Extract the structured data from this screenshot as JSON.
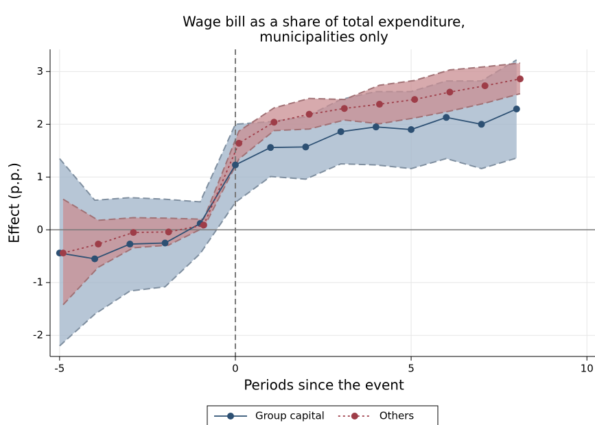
{
  "chart_data": {
    "type": "line",
    "title": [
      "Wage bill as a share of total expenditure,",
      "municipalities only"
    ],
    "xlabel": "Periods since the event",
    "ylabel": "Effect (p.p.)",
    "xlim": [
      -5.27,
      10.23
    ],
    "ylim": [
      -2.4,
      3.42
    ],
    "xticks": [
      -5,
      0,
      5,
      10
    ],
    "yticks": [
      -2,
      -1,
      0,
      1,
      2,
      3
    ],
    "hline": 0,
    "vline": 0,
    "grid": true,
    "legend": "bottom",
    "series": [
      {
        "name": "Group capital",
        "color": "#2d5073",
        "band_color": "#9fb3c8",
        "line_style": "solid",
        "x": [
          -5,
          -4,
          -3,
          -2,
          -1,
          0,
          1,
          2,
          3,
          4,
          5,
          6,
          7,
          8
        ],
        "values": [
          -0.44,
          -0.55,
          -0.27,
          -0.25,
          0.12,
          1.23,
          1.56,
          1.57,
          1.86,
          1.95,
          1.9,
          2.13,
          2.0,
          2.29
        ],
        "lower": [
          -2.2,
          -1.6,
          -1.16,
          -1.08,
          -0.45,
          0.52,
          1.01,
          0.96,
          1.25,
          1.23,
          1.16,
          1.35,
          1.16,
          1.36
        ],
        "upper": [
          1.35,
          0.56,
          0.61,
          0.58,
          0.53,
          2.0,
          2.05,
          2.14,
          2.47,
          2.62,
          2.62,
          2.82,
          2.82,
          3.22
        ]
      },
      {
        "name": "Others",
        "color": "#9e3d48",
        "band_color": "#c98d92",
        "line_style": "dotted",
        "x": [
          -4.9,
          -3.9,
          -2.9,
          -1.9,
          -0.9,
          0.1,
          1.1,
          2.1,
          3.1,
          4.1,
          5.1,
          6.1,
          7.1,
          8.1
        ],
        "values": [
          -0.44,
          -0.27,
          -0.05,
          -0.04,
          0.09,
          1.64,
          2.04,
          2.19,
          2.3,
          2.38,
          2.47,
          2.61,
          2.73,
          2.86
        ],
        "lower": [
          -1.42,
          -0.71,
          -0.34,
          -0.29,
          0.04,
          1.34,
          1.88,
          1.91,
          2.08,
          2.01,
          2.12,
          2.25,
          2.4,
          2.58
        ],
        "upper": [
          0.58,
          0.18,
          0.23,
          0.22,
          0.2,
          1.87,
          2.31,
          2.49,
          2.47,
          2.74,
          2.83,
          3.03,
          3.09,
          3.16
        ]
      }
    ]
  }
}
